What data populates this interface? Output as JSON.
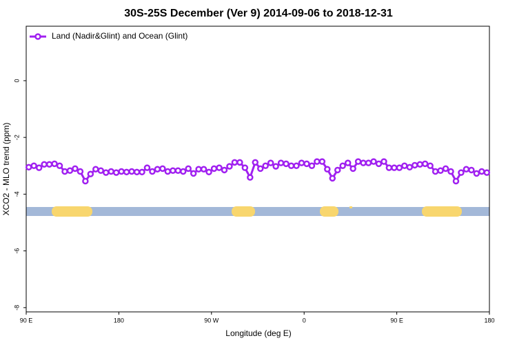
{
  "chart_data": {
    "type": "line",
    "title": "30S-25S December (Ver 9)   2014-09-06 to 2018-12-31",
    "x_label": "Longitude (deg E)",
    "y_label": "XCO2 - MLO trend (ppm)",
    "legend_position": "top-left",
    "xlim": [
      90,
      540
    ],
    "ylim": [
      -8.15,
      1.92
    ],
    "xticks": [
      {
        "value": 90,
        "label": "90 E"
      },
      180,
      {
        "value": 270,
        "label": "90 W"
      },
      {
        "value": 360,
        "label": "0"
      },
      {
        "value": 450,
        "label": "90 E"
      },
      {
        "value": 540,
        "label": "180"
      }
    ],
    "yticks": [
      0,
      -2,
      -4,
      -6,
      -8
    ],
    "x": [
      92.5,
      97.5,
      102.5,
      107.5,
      112.5,
      117.5,
      122.5,
      127.5,
      132.5,
      137.5,
      142.5,
      147.5,
      152.5,
      157.5,
      162.5,
      167.5,
      172.5,
      177.5,
      182.5,
      187.5,
      192.5,
      197.5,
      202.5,
      207.5,
      212.5,
      217.5,
      222.5,
      227.5,
      232.5,
      237.5,
      242.5,
      247.5,
      252.5,
      257.5,
      262.5,
      267.5,
      272.5,
      277.5,
      282.5,
      287.5,
      292.5,
      297.5,
      302.5,
      307.5,
      312.5,
      317.5,
      322.5,
      327.5,
      332.5,
      337.5,
      342.5,
      347.5,
      352.5,
      357.5,
      362.5,
      367.5,
      372.5,
      377.5,
      382.5,
      387.5,
      392.5,
      397.5,
      402.5,
      407.5,
      412.5,
      417.5,
      422.5,
      427.5,
      432.5,
      437.5,
      442.5,
      447.5,
      452.5,
      457.5,
      462.5,
      467.5,
      472.5,
      477.5,
      482.5,
      487.5,
      492.5,
      497.5,
      502.5,
      507.5,
      512.5,
      517.5,
      522.5,
      527.5,
      532.5,
      537.5
    ],
    "series": [
      {
        "name": "Land (Nadir&Glint) and Ocean (Glint)",
        "color": "#a020f0",
        "values": [
          -3.05,
          -3.0,
          -3.07,
          -2.95,
          -2.95,
          -2.93,
          -3.0,
          -3.2,
          -3.17,
          -3.1,
          -3.2,
          -3.54,
          -3.29,
          -3.12,
          -3.17,
          -3.24,
          -3.2,
          -3.24,
          -3.2,
          -3.22,
          -3.2,
          -3.22,
          -3.22,
          -3.07,
          -3.2,
          -3.12,
          -3.1,
          -3.2,
          -3.17,
          -3.17,
          -3.2,
          -3.1,
          -3.27,
          -3.12,
          -3.12,
          -3.22,
          -3.1,
          -3.07,
          -3.15,
          -3.02,
          -2.88,
          -2.88,
          -3.07,
          -3.41,
          -2.88,
          -3.1,
          -3.0,
          -2.9,
          -3.02,
          -2.9,
          -2.93,
          -3.0,
          -3.0,
          -2.9,
          -2.93,
          -3.0,
          -2.85,
          -2.85,
          -3.12,
          -3.44,
          -3.15,
          -3.0,
          -2.9,
          -3.1,
          -2.85,
          -2.9,
          -2.9,
          -2.85,
          -2.93,
          -2.85,
          -3.07,
          -3.07,
          -3.07,
          -3.0,
          -3.05,
          -2.98,
          -2.95,
          -2.93,
          -3.0,
          -3.2,
          -3.17,
          -3.1,
          -3.2,
          -3.54,
          -3.24,
          -3.12,
          -3.15,
          -3.27,
          -3.2,
          -3.24
        ]
      }
    ]
  }
}
